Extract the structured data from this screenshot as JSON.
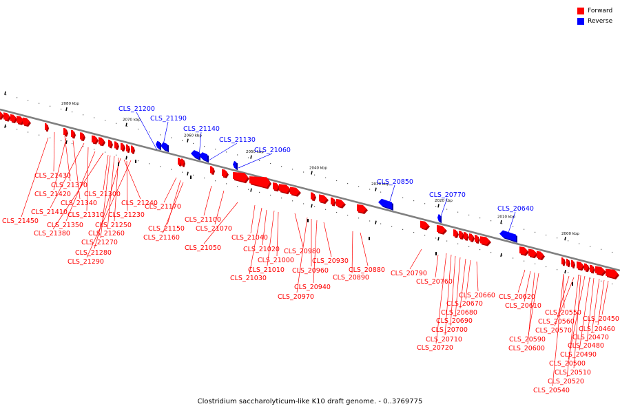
{
  "caption": "Clostridium saccharolyticum-like K10 draft genome. - 0..3769775",
  "legend": [
    {
      "label": "Forward",
      "color": "#ff0000"
    },
    {
      "label": "Reverse",
      "color": "#0000ff"
    }
  ],
  "colors": {
    "forward": "#ff0000",
    "reverse": "#0000ff",
    "backbone": "#808080"
  },
  "scale_labels": [
    "2080 kbp",
    "2070 kbp",
    "2060 kbp",
    "2050 kbp",
    "2040 kbp",
    "2030 kbp",
    "2020 kbp",
    "2010 kbp",
    "2000 kbp"
  ],
  "reverse_genes": [
    "CLS_21200",
    "CLS_21190",
    "CLS_21140",
    "CLS_21130",
    "CLS_21060",
    "CLS_20850",
    "CLS_20770",
    "CLS_20640"
  ],
  "forward_genes": [
    "CLS_21430",
    "CLS_21370",
    "CLS_21420",
    "CLS_21340",
    "CLS_21410",
    "CLS_21310",
    "CLS_21450",
    "CLS_21350",
    "CLS_21380",
    "CLS_21300",
    "CLS_21240",
    "CLS_21230",
    "CLS_21250",
    "CLS_21260",
    "CLS_21270",
    "CLS_21280",
    "CLS_21290",
    "CLS_21170",
    "CLS_21150",
    "CLS_21160",
    "CLS_21100",
    "CLS_21070",
    "CLS_21050",
    "CLS_21040",
    "CLS_21020",
    "CLS_21000",
    "CLS_21010",
    "CLS_21030",
    "CLS_20980",
    "CLS_20960",
    "CLS_20930",
    "CLS_20940",
    "CLS_20970",
    "CLS_20880",
    "CLS_20890",
    "CLS_20790",
    "CLS_20760",
    "CLS_20660",
    "CLS_20670",
    "CLS_20680",
    "CLS_20690",
    "CLS_20700",
    "CLS_20710",
    "CLS_20720",
    "CLS_20620",
    "CLS_20610",
    "CLS_20590",
    "CLS_20600",
    "CLS_20550",
    "CLS_20560",
    "CLS_20570",
    "CLS_20450",
    "CLS_20460",
    "CLS_20470",
    "CLS_20480",
    "CLS_20490",
    "CLS_20500",
    "CLS_20510",
    "CLS_20520",
    "CLS_20540"
  ]
}
